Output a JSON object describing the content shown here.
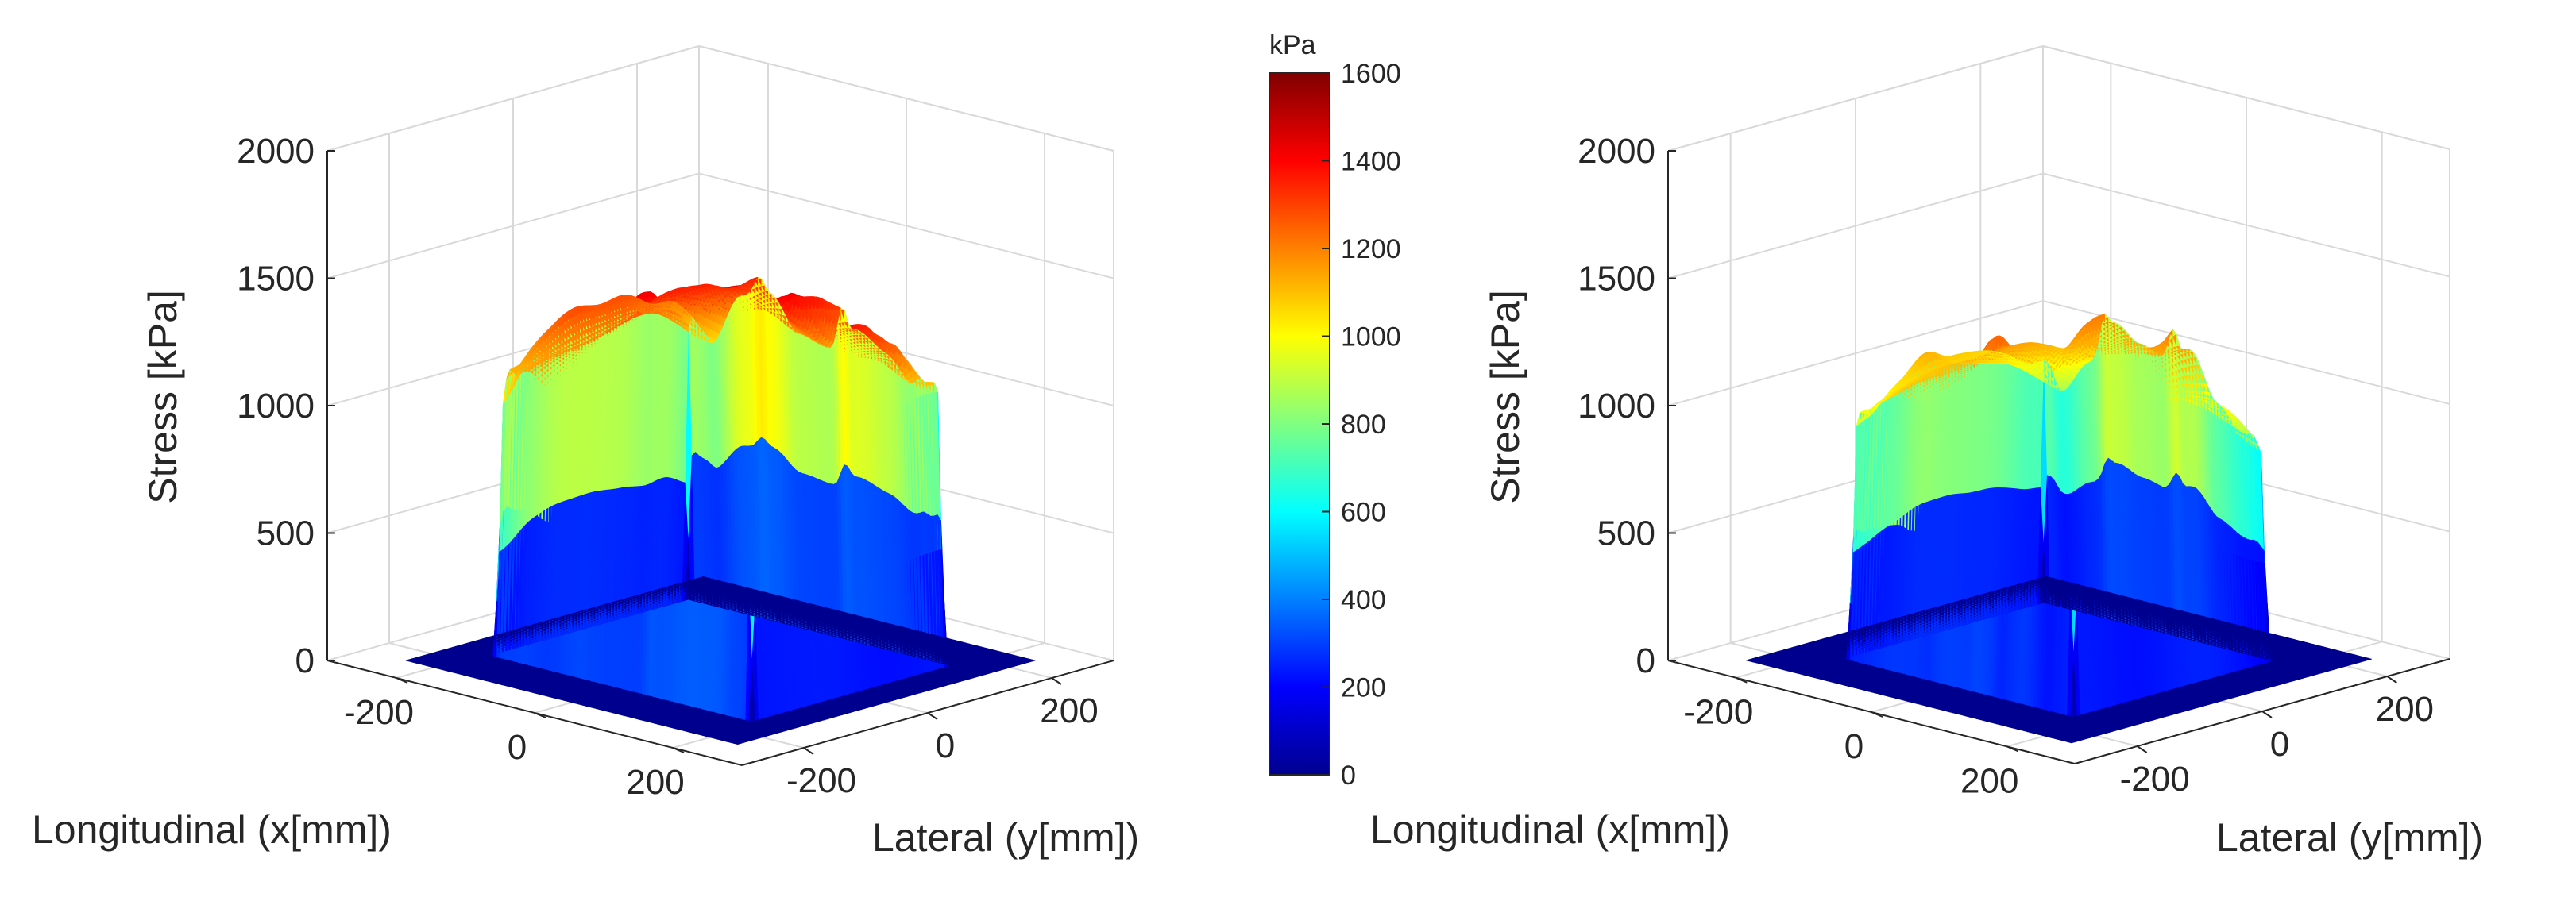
{
  "colormap": [
    "#00008f",
    "#0000ff",
    "#0080ff",
    "#00ffff",
    "#80ff80",
    "#ffff00",
    "#ff8000",
    "#ff0000",
    "#800000"
  ],
  "chart_data": [
    {
      "type": "surface3d",
      "xlabel": "Longitudinal (x[mm])",
      "ylabel": "Lateral (y[mm])",
      "zlabel": "Stress [kPa]",
      "x_ticks": [
        "-200",
        "0",
        "200"
      ],
      "y_ticks": [
        "-200",
        "0",
        "200"
      ],
      "z_ticks": [
        "0",
        "500",
        "1000",
        "1500",
        "2000"
      ],
      "xlim": [
        -300,
        300
      ],
      "ylim": [
        -300,
        300
      ],
      "zlim": [
        0,
        2000
      ],
      "grid": true,
      "contact_patch": {
        "x_range": [
          -190,
          190
        ],
        "y_range": [
          -160,
          160
        ]
      },
      "plateau_max_kPa": 1550,
      "edge_height_kPa": 900
    },
    {
      "type": "surface3d",
      "xlabel": "Longitudinal (x[mm])",
      "ylabel": "Lateral (y[mm])",
      "zlabel": "Stress [kPa]",
      "x_ticks": [
        "-200",
        "0",
        "200"
      ],
      "y_ticks": [
        "-200",
        "0",
        "200"
      ],
      "z_ticks": [
        "0",
        "500",
        "1000",
        "1500",
        "2000"
      ],
      "xlim": [
        -300,
        300
      ],
      "ylim": [
        -300,
        300
      ],
      "zlim": [
        0,
        2000
      ],
      "grid": true,
      "contact_patch": {
        "x_range": [
          -170,
          170
        ],
        "y_range": [
          -160,
          160
        ]
      },
      "plateau_max_kPa": 1450,
      "edge_height_kPa": 700
    }
  ],
  "colorbar": {
    "unit": "kPa",
    "ticks": [
      "0",
      "200",
      "400",
      "600",
      "800",
      "1000",
      "1200",
      "1400",
      "1600"
    ],
    "min": 0,
    "max": 1600
  }
}
